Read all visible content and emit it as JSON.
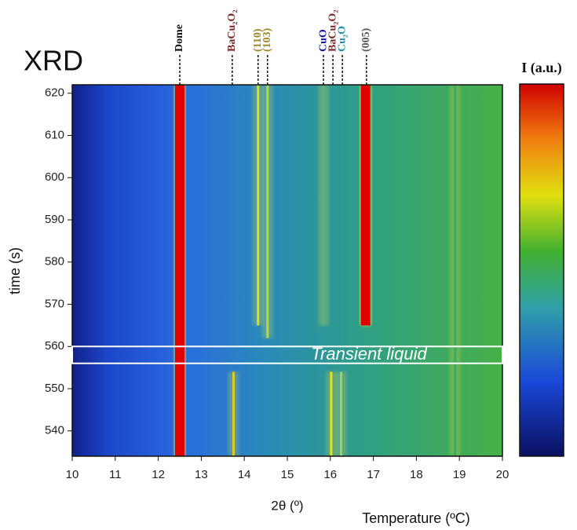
{
  "chart_data": {
    "type": "streak",
    "title": "XRD",
    "x_label": "2θ (º)",
    "y_label": "time (s)",
    "secondary_label": "Temperature (ºC)",
    "colorbar_label": "I (a.u.)",
    "xlim": [
      10,
      20
    ],
    "xticks": [
      10,
      11,
      12,
      13,
      14,
      15,
      16,
      17,
      18,
      19,
      20
    ],
    "ylim": [
      534,
      622
    ],
    "yticks": [
      540,
      550,
      560,
      570,
      580,
      590,
      600,
      610,
      620
    ],
    "peaks": [
      {
        "label": "Dome",
        "x": 12.5,
        "color": "#111111"
      },
      {
        "label": "BaCu₂O₂",
        "x": 13.72,
        "color": "#7a2a2a"
      },
      {
        "label": "(110)",
        "x": 14.32,
        "color": "#a08620"
      },
      {
        "label": "(103)",
        "x": 14.54,
        "color": "#a08620"
      },
      {
        "label": "CuO",
        "x": 15.84,
        "color": "#1a1aa0"
      },
      {
        "label": "BaCu₂O₂",
        "x": 16.06,
        "color": "#7a2a2a"
      },
      {
        "label": "Cu₂O",
        "x": 16.28,
        "color": "#2090a8"
      },
      {
        "label": "(005)",
        "x": 16.84,
        "color": "#555555"
      }
    ],
    "streaks": [
      {
        "x": 12.5,
        "y": [
          534,
          622
        ],
        "color": "#e00000"
      },
      {
        "x": 13.75,
        "y": [
          534,
          554
        ],
        "color": "#d8d020"
      },
      {
        "x": 14.32,
        "y": [
          565,
          622
        ],
        "color": "#e0e020"
      },
      {
        "x": 14.54,
        "y": [
          562,
          622
        ],
        "color": "#b8d840"
      },
      {
        "x": 15.84,
        "y": [
          565,
          622
        ],
        "color": "#60b080"
      },
      {
        "x": 16.02,
        "y": [
          534,
          554
        ],
        "color": "#e8e020"
      },
      {
        "x": 16.25,
        "y": [
          534,
          554
        ],
        "color": "#a0d060"
      },
      {
        "x": 16.82,
        "y": [
          565,
          622
        ],
        "color": "#e00000"
      },
      {
        "x": 18.9,
        "y": [
          534,
          622
        ],
        "color": "#40a860"
      }
    ],
    "annotation": {
      "text": "Transient liquid",
      "y": [
        556,
        560
      ]
    }
  }
}
